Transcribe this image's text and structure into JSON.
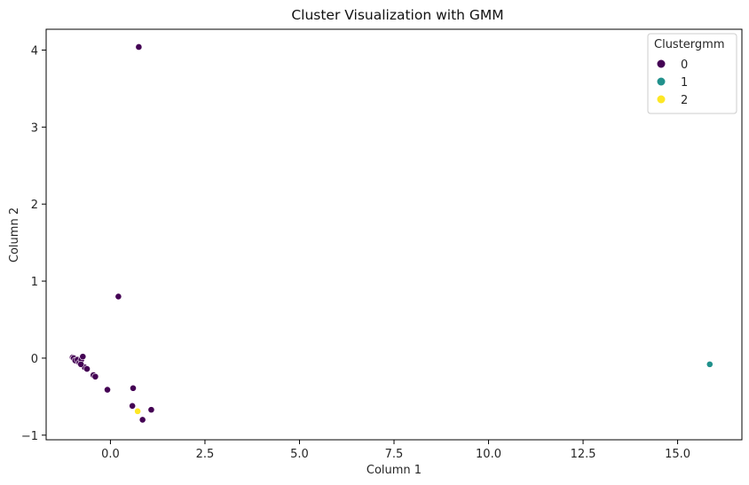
{
  "chart_data": {
    "type": "scatter",
    "title": "Cluster Visualization with GMM",
    "xlabel": "Column 1",
    "ylabel": "Column 2",
    "xlim": [
      -1.7,
      16.7
    ],
    "ylim": [
      -1.06,
      4.27
    ],
    "xticks": [
      0.0,
      2.5,
      5.0,
      7.5,
      10.0,
      12.5,
      15.0
    ],
    "xtick_labels": [
      "0.0",
      "2.5",
      "5.0",
      "7.5",
      "10.0",
      "12.5",
      "15.0"
    ],
    "yticks": [
      -1,
      0,
      1,
      2,
      3,
      4
    ],
    "ytick_labels": [
      "−1",
      "0",
      "1",
      "2",
      "3",
      "4"
    ],
    "grid": false,
    "legend": {
      "title": "Clustergmm",
      "position": "top-right"
    },
    "series": [
      {
        "name": "0",
        "color": "#440154",
        "points": [
          [
            0.75,
            4.04
          ],
          [
            0.21,
            0.8
          ],
          [
            -1.0,
            0.01
          ],
          [
            -0.97,
            0.0
          ],
          [
            -0.93,
            -0.03
          ],
          [
            -0.87,
            -0.02
          ],
          [
            -0.82,
            -0.06
          ],
          [
            -0.77,
            -0.02
          ],
          [
            -0.73,
            0.02
          ],
          [
            -0.68,
            -0.12
          ],
          [
            -0.62,
            -0.14
          ],
          [
            -0.45,
            -0.22
          ],
          [
            -0.4,
            -0.24
          ],
          [
            -0.08,
            -0.41
          ],
          [
            0.6,
            -0.39
          ],
          [
            0.58,
            -0.62
          ],
          [
            1.08,
            -0.67
          ],
          [
            0.85,
            -0.8
          ],
          [
            -0.78,
            -0.08
          ]
        ]
      },
      {
        "name": "1",
        "color": "#21918c",
        "points": [
          [
            15.85,
            -0.08
          ]
        ]
      },
      {
        "name": "2",
        "color": "#fde725",
        "points": [
          [
            0.72,
            -0.69
          ]
        ]
      }
    ]
  }
}
